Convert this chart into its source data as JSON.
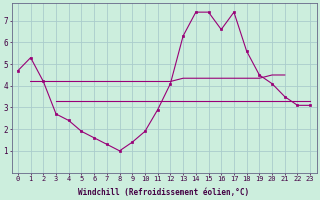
{
  "xlabel": "Windchill (Refroidissement éolien,°C)",
  "background_color": "#cceedd",
  "grid_color": "#aacccc",
  "line_color": "#990077",
  "x": [
    0,
    1,
    2,
    3,
    4,
    5,
    6,
    7,
    8,
    9,
    10,
    11,
    12,
    13,
    14,
    15,
    16,
    17,
    18,
    19,
    20,
    21,
    22,
    23
  ],
  "y_main": [
    4.7,
    5.3,
    4.2,
    2.7,
    2.4,
    1.9,
    1.6,
    1.3,
    1.0,
    1.4,
    1.9,
    2.9,
    4.1,
    6.3,
    7.4,
    7.4,
    6.6,
    7.4,
    5.6,
    4.5,
    4.1,
    3.5,
    3.1,
    3.1
  ],
  "y_flat_low_x": [
    3,
    4,
    5,
    6,
    7,
    8,
    9,
    10,
    11,
    12,
    13,
    14,
    15,
    16,
    17,
    18,
    19,
    20,
    21,
    22,
    23
  ],
  "y_flat_low_v": [
    3.3,
    3.3,
    3.3,
    3.3,
    3.3,
    3.3,
    3.3,
    3.3,
    3.3,
    3.3,
    3.3,
    3.3,
    3.3,
    3.3,
    3.3,
    3.3,
    3.3,
    3.3,
    3.3,
    3.3,
    3.3
  ],
  "y_flat_high_x": [
    1,
    2,
    3,
    4,
    5,
    6,
    7,
    8,
    9,
    10,
    11,
    12,
    13,
    14,
    15,
    16,
    17,
    18,
    19,
    20,
    21
  ],
  "y_flat_high_v": [
    4.2,
    4.2,
    4.2,
    4.2,
    4.2,
    4.2,
    4.2,
    4.2,
    4.2,
    4.2,
    4.2,
    4.2,
    4.35,
    4.35,
    4.35,
    4.35,
    4.35,
    4.35,
    4.35,
    4.5,
    4.5
  ],
  "ylim": [
    0,
    7.8
  ],
  "xlim": [
    -0.5,
    23.5
  ],
  "yticks": [
    1,
    2,
    3,
    4,
    5,
    6,
    7
  ],
  "xticks": [
    0,
    1,
    2,
    3,
    4,
    5,
    6,
    7,
    8,
    9,
    10,
    11,
    12,
    13,
    14,
    15,
    16,
    17,
    18,
    19,
    20,
    21,
    22,
    23
  ]
}
